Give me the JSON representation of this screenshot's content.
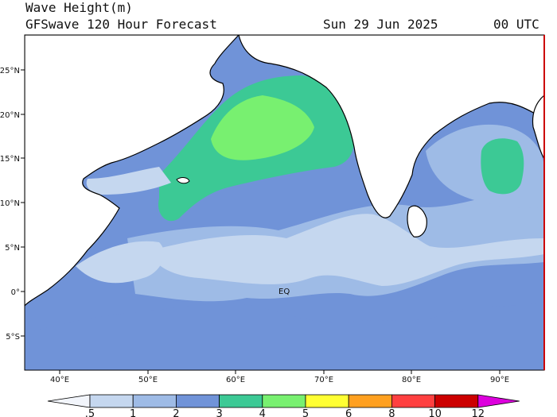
{
  "header": {
    "variable": "Wave Height(m)",
    "model": "GFSwave 120 Hour Forecast",
    "date": "Sun 29 Jun 2025",
    "time": "00 UTC"
  },
  "map": {
    "region": "Indian Ocean",
    "lon_range": [
      37,
      95
    ],
    "lat_range": [
      -9,
      29
    ],
    "lon_ticks": [
      "40°E",
      "50°E",
      "60°E",
      "70°E",
      "80°E",
      "90°E"
    ],
    "lat_ticks": [
      "25°N",
      "20°N",
      "15°N",
      "10°N",
      "5°N",
      "0°",
      "5°S"
    ],
    "equator_label": "EQ"
  },
  "colorbar": {
    "levels": [
      ".5",
      "1",
      "2",
      "3",
      "4",
      "5",
      "6",
      "8",
      "10",
      "12"
    ],
    "colors": [
      "#f2f5fb",
      "#c5d7ef",
      "#9ebbe6",
      "#7093d8",
      "#3cc995",
      "#78f070",
      "#ffff33",
      "#ffa020",
      "#ff4040",
      "#cc0000",
      "#dd00dd"
    ]
  },
  "colors": {
    "land": "#ffffff",
    "coast": "#000000",
    "lowest": "#f2f5fb",
    "low": "#c5d7ef",
    "mid": "#7093d8",
    "high": "#3cc995",
    "highest": "#78f070"
  }
}
